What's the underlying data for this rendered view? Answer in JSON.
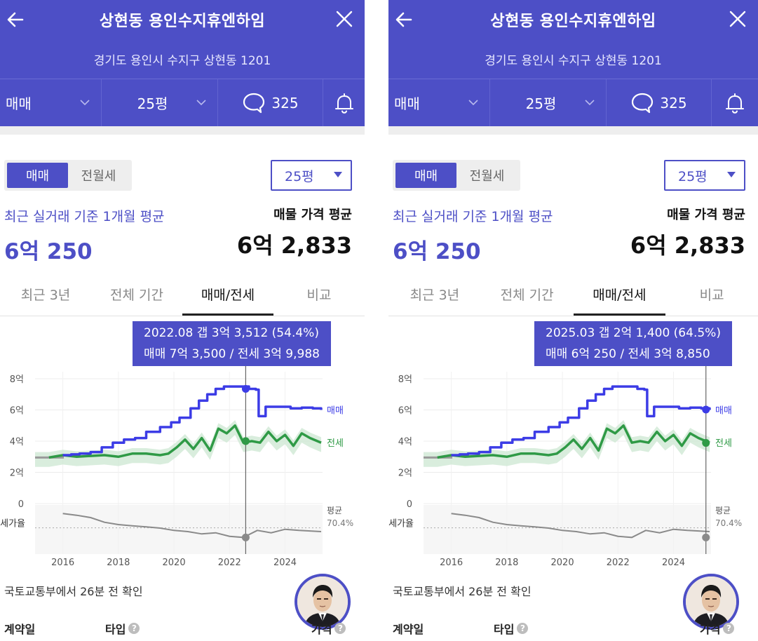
{
  "panels": [
    {
      "header": {
        "title": "상현동 용인수지휴엔하임",
        "address": "경기도 용인시 수지구 상현동 1201",
        "deal_filter": "매매",
        "size_filter": "25평",
        "comment_count": "325"
      },
      "summary": {
        "toggle_sale": "매매",
        "toggle_rent": "전월세",
        "size_select": "25평",
        "recent_label": "최근 실거래 기준 1개월 평균",
        "recent_price": "6억 250",
        "listing_label": "매물 가격 평균",
        "listing_price": "6억 2,833"
      },
      "period_tabs": [
        "최근 3년",
        "전체 기간",
        "매매/전세",
        "비교"
      ],
      "active_tab": 2,
      "tooltip": {
        "line1": "2022.08  갭 3억 3,512 (54.4%)",
        "line2": "매매 7억 3,500 / 전세 3억 9,988"
      },
      "footer": {
        "source_note": "국토교통부에서 26분 전 확인",
        "col_date": "계약일",
        "col_type": "타입",
        "col_price": "가격"
      }
    },
    {
      "header": {
        "title": "상현동 용인수지휴엔하임",
        "address": "경기도 용인시 수지구 상현동 1201",
        "deal_filter": "매매",
        "size_filter": "25평",
        "comment_count": "325"
      },
      "summary": {
        "toggle_sale": "매매",
        "toggle_rent": "전월세",
        "size_select": "25평",
        "recent_label": "최근 실거래 기준 1개월 평균",
        "recent_price": "6억 250",
        "listing_label": "매물 가격 평균",
        "listing_price": "6억 2,833"
      },
      "period_tabs": [
        "최근 3년",
        "전체 기간",
        "매매/전세",
        "비교"
      ],
      "active_tab": 2,
      "tooltip": {
        "line1": "2025.03  갭 2억 1,400 (64.5%)",
        "line2": "매매 6억 250 / 전세 3억 8,850"
      },
      "footer": {
        "source_note": "국토교통부에서 26분 전 확인",
        "col_date": "계약일",
        "col_type": "타입",
        "col_price": "가격"
      }
    }
  ],
  "colors": {
    "brand": "#4d4fc6",
    "sale_line": "#3c3ce6",
    "jeonse_line": "#2f9a46",
    "jeonse_band": "#cfe9d5",
    "ratio_line": "#8a8a8a",
    "pre_line": "#9a9a9a"
  },
  "chart_data": [
    {
      "type": "line",
      "x_ticks": [
        "2016",
        "2018",
        "2020",
        "2022",
        "2024"
      ],
      "y_ticks": [
        "8억",
        "6억",
        "4억",
        "2억",
        "0"
      ],
      "ylim": [
        0,
        8
      ],
      "y_unit": "억",
      "ratio_axis_label": "전세가율",
      "ratio_avg_label": "평균",
      "ratio_avg_value": "70.4%",
      "series": [
        {
          "name": "매매",
          "x": [
            2015.0,
            2015.5,
            2016.0,
            2016.3,
            2016.6,
            2017.0,
            2017.4,
            2017.8,
            2018.2,
            2018.6,
            2019.0,
            2019.5,
            2019.9,
            2020.2,
            2020.6,
            2020.9,
            2021.2,
            2021.5,
            2021.8,
            2022.1,
            2022.4,
            2022.7,
            2022.95,
            2023.05,
            2023.3,
            2023.8,
            2024.2,
            2024.6,
            2025.0,
            2025.3
          ],
          "y": [
            2.95,
            2.95,
            3.1,
            3.15,
            3.2,
            3.3,
            3.6,
            3.9,
            4.1,
            4.2,
            4.6,
            4.9,
            5.2,
            5.5,
            6.1,
            6.6,
            7.0,
            7.35,
            7.5,
            7.5,
            7.5,
            7.35,
            7.3,
            5.6,
            6.2,
            6.2,
            6.1,
            6.15,
            6.1,
            6.0
          ]
        },
        {
          "name": "전세",
          "x": [
            2015.0,
            2015.5,
            2016.0,
            2016.5,
            2017.0,
            2017.5,
            2018.0,
            2018.5,
            2019.0,
            2019.5,
            2019.8,
            2020.1,
            2020.4,
            2020.7,
            2021.0,
            2021.3,
            2021.6,
            2021.9,
            2022.2,
            2022.5,
            2022.8,
            2023.1,
            2023.4,
            2023.7,
            2024.0,
            2024.3,
            2024.6,
            2024.9,
            2025.3
          ],
          "y": [
            2.95,
            2.95,
            3.1,
            3.0,
            3.05,
            3.1,
            3.0,
            3.2,
            3.2,
            3.1,
            3.2,
            3.6,
            4.1,
            3.5,
            4.2,
            3.4,
            4.8,
            4.5,
            5.0,
            3.9,
            4.0,
            3.9,
            4.6,
            4.0,
            4.4,
            3.7,
            4.5,
            4.2,
            3.9
          ]
        },
        {
          "name": "전세가율",
          "x": [
            2016.0,
            2016.5,
            2017.0,
            2017.5,
            2018.0,
            2018.5,
            2019.0,
            2019.5,
            2020.0,
            2020.5,
            2021.0,
            2021.5,
            2022.0,
            2022.5,
            2023.0,
            2023.5,
            2024.0,
            2024.5,
            2025.3
          ],
          "y": [
            95,
            92,
            88,
            80,
            76,
            74,
            72,
            70,
            66,
            64,
            60,
            62,
            56,
            54,
            66,
            62,
            68,
            66,
            64
          ]
        }
      ],
      "highlight": {
        "date": "2022.08",
        "sale": 7.35,
        "jeonse": 3.9988
      }
    },
    {
      "type": "line",
      "x_ticks": [
        "2016",
        "2018",
        "2020",
        "2022",
        "2024"
      ],
      "y_ticks": [
        "8억",
        "6억",
        "4억",
        "2억",
        "0"
      ],
      "ylim": [
        0,
        8
      ],
      "y_unit": "억",
      "ratio_axis_label": "전세가율",
      "ratio_avg_label": "평균",
      "ratio_avg_value": "70.4%",
      "series": [
        {
          "name": "매매",
          "x": [
            2015.0,
            2015.5,
            2016.0,
            2016.3,
            2016.6,
            2017.0,
            2017.4,
            2017.8,
            2018.2,
            2018.6,
            2019.0,
            2019.5,
            2019.9,
            2020.2,
            2020.6,
            2020.9,
            2021.2,
            2021.5,
            2021.8,
            2022.1,
            2022.4,
            2022.7,
            2022.95,
            2023.05,
            2023.3,
            2023.8,
            2024.2,
            2024.6,
            2025.0,
            2025.3
          ],
          "y": [
            2.95,
            2.95,
            3.1,
            3.15,
            3.2,
            3.3,
            3.6,
            3.9,
            4.1,
            4.2,
            4.6,
            4.9,
            5.2,
            5.5,
            6.1,
            6.6,
            7.0,
            7.35,
            7.5,
            7.5,
            7.5,
            7.35,
            7.3,
            5.6,
            6.2,
            6.2,
            6.1,
            6.15,
            6.1,
            6.0
          ]
        },
        {
          "name": "전세",
          "x": [
            2015.0,
            2015.5,
            2016.0,
            2016.5,
            2017.0,
            2017.5,
            2018.0,
            2018.5,
            2019.0,
            2019.5,
            2019.8,
            2020.1,
            2020.4,
            2020.7,
            2021.0,
            2021.3,
            2021.6,
            2021.9,
            2022.2,
            2022.5,
            2022.8,
            2023.1,
            2023.4,
            2023.7,
            2024.0,
            2024.3,
            2024.6,
            2024.9,
            2025.3
          ],
          "y": [
            2.95,
            2.95,
            3.1,
            3.0,
            3.05,
            3.1,
            3.0,
            3.2,
            3.2,
            3.1,
            3.2,
            3.6,
            4.1,
            3.5,
            4.2,
            3.4,
            4.8,
            4.5,
            5.0,
            3.9,
            4.0,
            3.9,
            4.6,
            4.0,
            4.4,
            3.7,
            4.5,
            4.2,
            3.9
          ]
        },
        {
          "name": "전세가율",
          "x": [
            2016.0,
            2016.5,
            2017.0,
            2017.5,
            2018.0,
            2018.5,
            2019.0,
            2019.5,
            2020.0,
            2020.5,
            2021.0,
            2021.5,
            2022.0,
            2022.5,
            2023.0,
            2023.5,
            2024.0,
            2024.5,
            2025.3
          ],
          "y": [
            95,
            92,
            88,
            80,
            76,
            74,
            72,
            70,
            66,
            64,
            60,
            62,
            56,
            54,
            66,
            62,
            68,
            66,
            64
          ]
        }
      ],
      "highlight": {
        "date": "2025.03",
        "sale": 6.025,
        "jeonse": 3.885
      }
    }
  ]
}
